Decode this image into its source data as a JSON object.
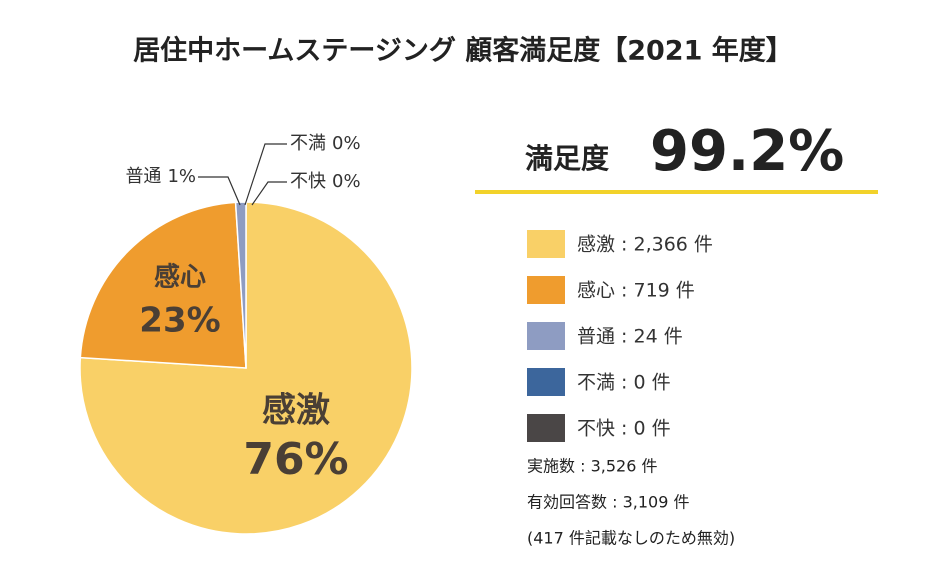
{
  "chart_data": {
    "type": "pie",
    "title": "居住中ホームステージング 顧客満足度【2021 年度】",
    "satisfaction_label": "満足度",
    "satisfaction_value": "99.2%",
    "categories": [
      "感激",
      "感心",
      "普通",
      "不満",
      "不快"
    ],
    "values": [
      76,
      23,
      1,
      0,
      0
    ],
    "value_labels": [
      "76%",
      "23%",
      "1%",
      "0%",
      "0%"
    ],
    "colors": [
      "#f9d067",
      "#ef9c2e",
      "#8e9cc2",
      "#3c669c",
      "#4a4646"
    ],
    "legend_labels": [
      "感激 : 2,366 件",
      "感心 : 719 件",
      "普通 : 24 件",
      "不満 : 0 件",
      "不快 : 0 件"
    ],
    "notes": [
      "実施数 : 3,526 件",
      "有効回答数 : 3,109 件",
      "(417 件記載なしのため無効)"
    ]
  }
}
